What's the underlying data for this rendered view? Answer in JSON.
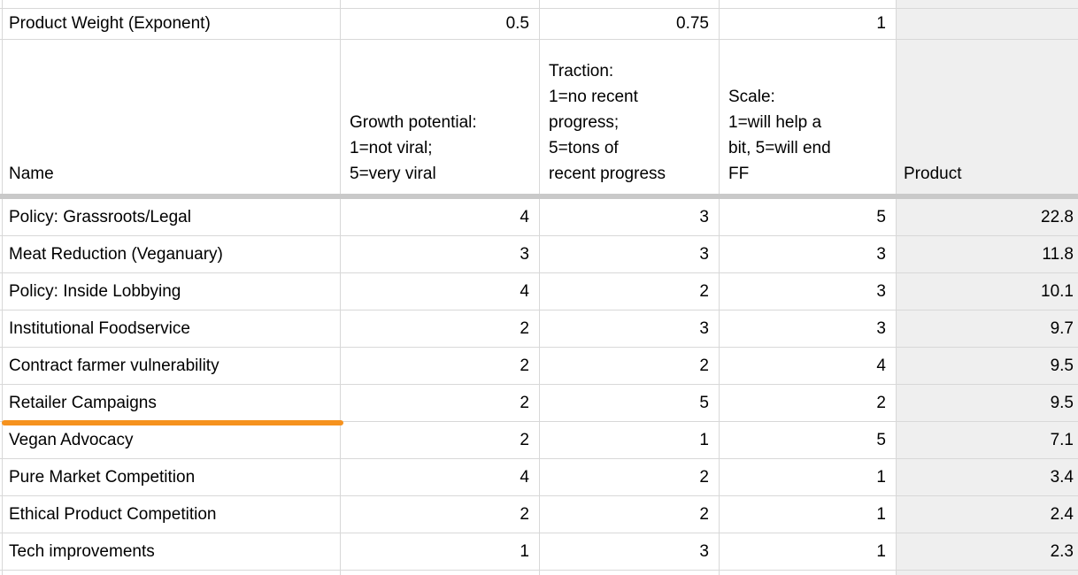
{
  "weights_row": {
    "label": "Product Weight (Exponent)",
    "growth_weight": "0.5",
    "traction_weight": "0.75",
    "scale_weight": "1"
  },
  "header_row": {
    "name": "Name",
    "growth": "Growth potential:\n1=not viral;\n5=very viral",
    "traction": "Traction:\n1=no recent\nprogress;\n5=tons of\nrecent progress",
    "scale": "Scale:\n1=will help a\nbit, 5=will end\nFF",
    "product": "Product"
  },
  "rows": [
    {
      "name": "Policy: Grassroots/Legal",
      "growth": "4",
      "traction": "3",
      "scale": "5",
      "product": "22.8",
      "underlined": false
    },
    {
      "name": "Meat Reduction (Veganuary)",
      "growth": "3",
      "traction": "3",
      "scale": "3",
      "product": "11.8",
      "underlined": false
    },
    {
      "name": "Policy: Inside Lobbying",
      "growth": "4",
      "traction": "2",
      "scale": "3",
      "product": "10.1",
      "underlined": false
    },
    {
      "name": "Institutional Foodservice",
      "growth": "2",
      "traction": "3",
      "scale": "3",
      "product": "9.7",
      "underlined": false
    },
    {
      "name": "Contract farmer vulnerability",
      "growth": "2",
      "traction": "2",
      "scale": "4",
      "product": "9.5",
      "underlined": false
    },
    {
      "name": "Retailer Campaigns",
      "growth": "2",
      "traction": "5",
      "scale": "2",
      "product": "9.5",
      "underlined": true
    },
    {
      "name": "Vegan Advocacy",
      "growth": "2",
      "traction": "1",
      "scale": "5",
      "product": "7.1",
      "underlined": false
    },
    {
      "name": "Pure Market Competition",
      "growth": "4",
      "traction": "2",
      "scale": "1",
      "product": "3.4",
      "underlined": false
    },
    {
      "name": "Ethical Product Competition",
      "growth": "2",
      "traction": "2",
      "scale": "1",
      "product": "2.4",
      "underlined": false
    },
    {
      "name": "Tech improvements",
      "growth": "1",
      "traction": "3",
      "scale": "1",
      "product": "2.3",
      "underlined": false
    }
  ],
  "colors": {
    "underline": "#f6921e",
    "product_column_fill": "#efefef",
    "divider": "#c9c9c9",
    "grid_line": "#d8d8d8"
  }
}
